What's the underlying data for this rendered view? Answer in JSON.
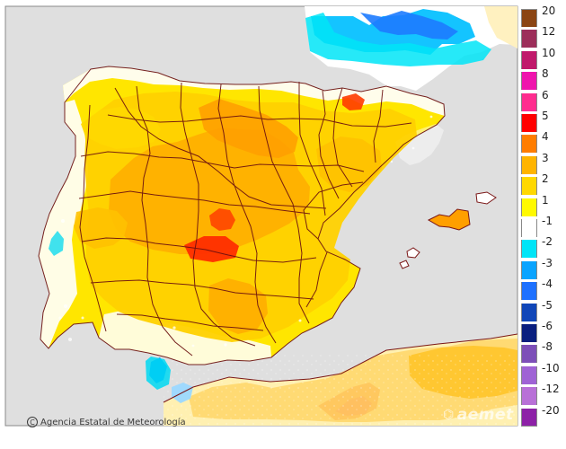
{
  "map": {
    "credit": "Agencia Estatal de Meteorología",
    "credit_icon": "copyright-icon",
    "brand": "aemet",
    "brand_icon": "aemet-logo-icon"
  },
  "legend": {
    "items": [
      {
        "label": "20",
        "color": "#8b4513"
      },
      {
        "label": "12",
        "color": "#9c2f5a"
      },
      {
        "label": "10",
        "color": "#c0196b"
      },
      {
        "label": "8",
        "color": "#ef15ad"
      },
      {
        "label": "6",
        "color": "#ff2d8f"
      },
      {
        "label": "5",
        "color": "#ff0000"
      },
      {
        "label": "4",
        "color": "#ff7d00"
      },
      {
        "label": "3",
        "color": "#ffb400"
      },
      {
        "label": "2",
        "color": "#ffd800"
      },
      {
        "label": "1",
        "color": "#fff900"
      },
      {
        "label": "-1",
        "color": "#ffffff"
      },
      {
        "label": "-2",
        "color": "#00e5f7"
      },
      {
        "label": "-3",
        "color": "#0aa4ff"
      },
      {
        "label": "-4",
        "color": "#1e71ff"
      },
      {
        "label": "-5",
        "color": "#1146b8"
      },
      {
        "label": "-6",
        "color": "#0a1f7f"
      },
      {
        "label": "-8",
        "color": "#7d4fb8"
      },
      {
        "label": "-10",
        "color": "#9f63d5"
      },
      {
        "label": "-12",
        "color": "#b870d7"
      },
      {
        "label": "-20",
        "color": "#8d21a7"
      }
    ]
  }
}
